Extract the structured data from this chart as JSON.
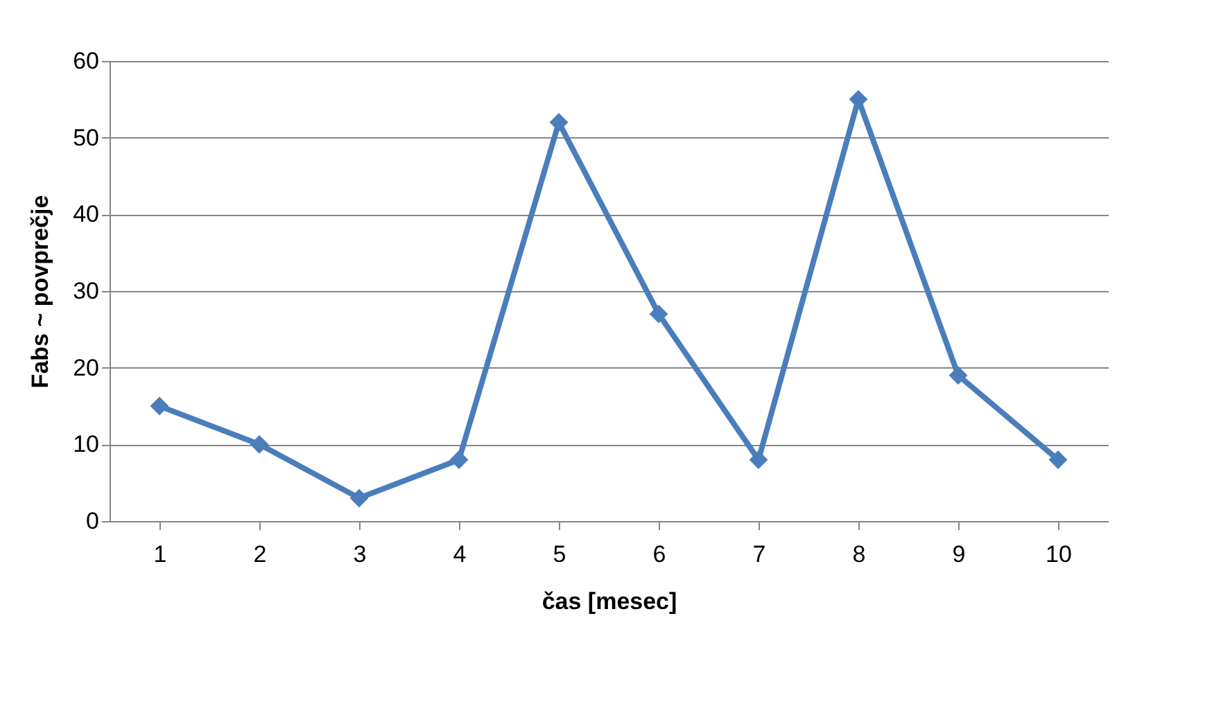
{
  "chart_data": {
    "type": "line",
    "xlabel": "čas [mesec]",
    "ylabel": "Fabs ~ povprečje",
    "categories": [
      "1",
      "2",
      "3",
      "4",
      "5",
      "6",
      "7",
      "8",
      "9",
      "10"
    ],
    "series": [
      {
        "color": "#4a7ebb",
        "values": [
          15,
          10,
          3,
          8,
          52,
          27,
          8,
          55,
          19,
          8
        ]
      }
    ],
    "ylim": [
      0,
      60
    ],
    "yticks": [
      0,
      10,
      20,
      30,
      40,
      50,
      60
    ],
    "grid": "y",
    "marker": "diamond",
    "line_style": "solid"
  }
}
